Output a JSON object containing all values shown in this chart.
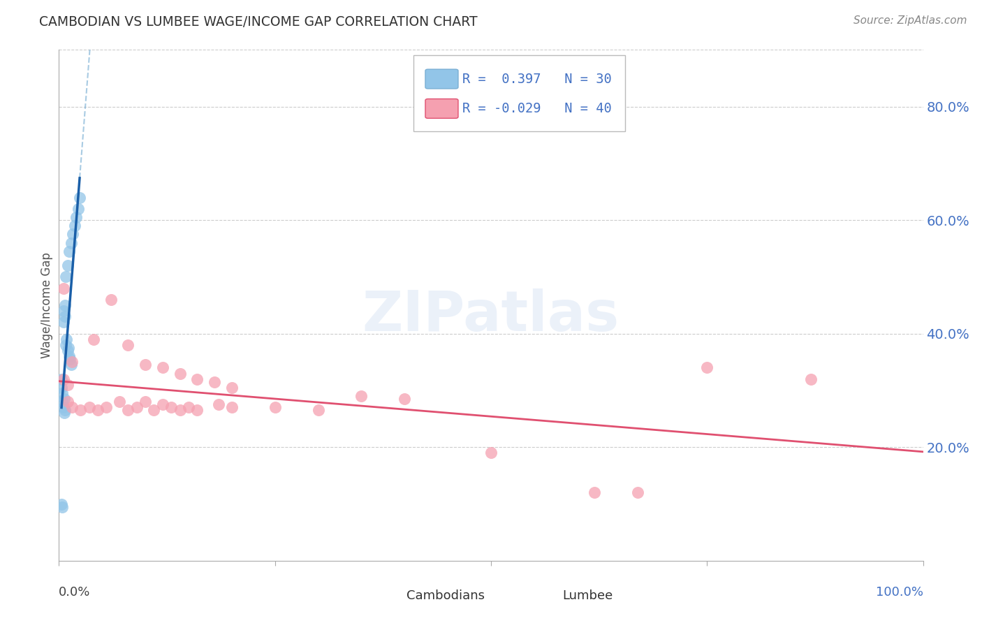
{
  "title": "CAMBODIAN VS LUMBEE WAGE/INCOME GAP CORRELATION CHART",
  "source": "Source: ZipAtlas.com",
  "ylabel": "Wage/Income Gap",
  "xlim": [
    0.0,
    1.0
  ],
  "ylim": [
    0.0,
    0.9
  ],
  "ytick_vals": [
    0.2,
    0.4,
    0.6,
    0.8
  ],
  "xtick_labels_left": "0.0%",
  "xtick_labels_right": "100.0%",
  "cambodian_color": "#92C5E8",
  "lumbee_color": "#F5A0B0",
  "cambodian_line_solid_color": "#1A5FA8",
  "cambodian_line_dash_color": "#7AAFD4",
  "lumbee_line_color": "#E05070",
  "R_cambodian": 0.397,
  "N_cambodian": 30,
  "R_lumbee": -0.029,
  "N_lumbee": 40,
  "background_color": "#FFFFFF",
  "grid_color": "#CCCCCC",
  "cambodian_x": [
    0.008,
    0.01,
    0.012,
    0.014,
    0.016,
    0.018,
    0.02,
    0.022,
    0.024,
    0.005,
    0.005,
    0.007,
    0.007,
    0.008,
    0.009,
    0.01,
    0.011,
    0.012,
    0.013,
    0.014,
    0.003,
    0.003,
    0.004,
    0.004,
    0.005,
    0.006,
    0.006,
    0.007,
    0.003,
    0.004
  ],
  "cambodian_y": [
    0.5,
    0.52,
    0.545,
    0.56,
    0.575,
    0.59,
    0.605,
    0.62,
    0.64,
    0.42,
    0.44,
    0.43,
    0.45,
    0.38,
    0.39,
    0.37,
    0.375,
    0.36,
    0.355,
    0.345,
    0.32,
    0.305,
    0.295,
    0.28,
    0.27,
    0.26,
    0.285,
    0.265,
    0.1,
    0.095
  ],
  "lumbee_x": [
    0.005,
    0.01,
    0.015,
    0.04,
    0.06,
    0.08,
    0.1,
    0.12,
    0.14,
    0.16,
    0.18,
    0.2,
    0.01,
    0.015,
    0.025,
    0.035,
    0.045,
    0.055,
    0.07,
    0.08,
    0.09,
    0.1,
    0.11,
    0.12,
    0.13,
    0.14,
    0.15,
    0.16,
    0.185,
    0.2,
    0.25,
    0.3,
    0.35,
    0.4,
    0.5,
    0.62,
    0.67,
    0.75,
    0.87,
    0.005
  ],
  "lumbee_y": [
    0.32,
    0.31,
    0.35,
    0.39,
    0.46,
    0.38,
    0.345,
    0.34,
    0.33,
    0.32,
    0.315,
    0.305,
    0.28,
    0.27,
    0.265,
    0.27,
    0.265,
    0.27,
    0.28,
    0.265,
    0.27,
    0.28,
    0.265,
    0.275,
    0.27,
    0.265,
    0.27,
    0.265,
    0.275,
    0.27,
    0.27,
    0.265,
    0.29,
    0.285,
    0.19,
    0.12,
    0.12,
    0.34,
    0.32,
    0.48
  ]
}
